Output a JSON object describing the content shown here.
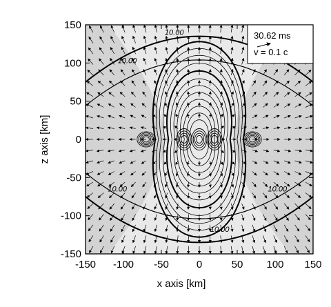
{
  "chart_data": {
    "type": "contour",
    "xlabel": "x axis [km]",
    "ylabel": "z axis [km]",
    "xlim": [
      -150,
      150
    ],
    "ylim": [
      -150,
      150
    ],
    "x_ticks": [
      -150,
      -100,
      -50,
      0,
      50,
      100,
      150
    ],
    "y_ticks": [
      -150,
      -100,
      -50,
      0,
      50,
      100,
      150
    ],
    "x_tick_labels": [
      "-150",
      "-100",
      "-50",
      "0",
      "50",
      "100",
      "150"
    ],
    "y_tick_labels": [
      "-150",
      "-100",
      "-50",
      "0",
      "50",
      "100",
      "150"
    ],
    "annotation": {
      "time": "30.62 ms",
      "velocity_label": "v",
      "velocity_value": "= 0.1 c"
    },
    "contour_labels": [
      {
        "text": "10.00",
        "x": -95,
        "y": 100
      },
      {
        "text": "10.00",
        "x": 105,
        "y": 100
      },
      {
        "text": "10.00",
        "x": -108,
        "y": -68
      },
      {
        "text": "10.00",
        "x": 103,
        "y": -68
      },
      {
        "text": "10.00",
        "x": -33,
        "y": 137
      },
      {
        "text": "10.00",
        "x": 27,
        "y": -121
      }
    ],
    "colors": {
      "background": "#d3d3d3",
      "inner_region": "#e9e9e9",
      "contour": "#000000"
    }
  }
}
